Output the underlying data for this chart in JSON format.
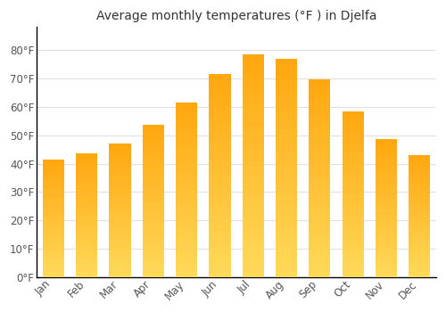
{
  "title": "Average monthly temperatures (°F ) in Djelfa",
  "months": [
    "Jan",
    "Feb",
    "Mar",
    "Apr",
    "May",
    "Jun",
    "Jul",
    "Aug",
    "Sep",
    "Oct",
    "Nov",
    "Dec"
  ],
  "values": [
    41.5,
    43.5,
    47.0,
    53.5,
    61.5,
    71.5,
    78.5,
    77.0,
    69.5,
    58.5,
    48.5,
    43.0
  ],
  "bar_color": "#FFA500",
  "bar_color_light": "#FFD080",
  "background_color": "#FFFFFF",
  "plot_bg_color": "#FFFFFF",
  "grid_color": "#E0E0E0",
  "spine_color": "#000000",
  "text_color": "#555555",
  "title_color": "#333333",
  "ylim": [
    0,
    88
  ],
  "yticks": [
    0,
    10,
    20,
    30,
    40,
    50,
    60,
    70,
    80
  ],
  "title_fontsize": 10,
  "tick_fontsize": 8.5,
  "bar_width": 0.65
}
